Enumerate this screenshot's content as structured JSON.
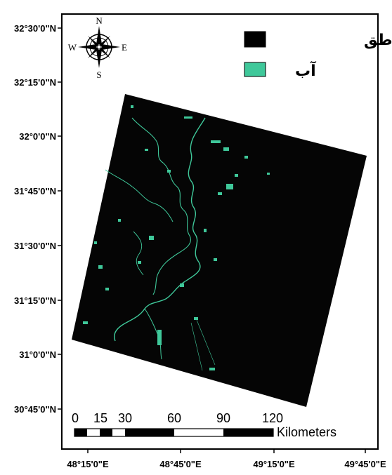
{
  "latitude_labels": [
    "32°30'0\"N",
    "32°15'0\"N",
    "32°0'0\"N",
    "31°45'0\"N",
    "31°30'0\"N",
    "31°15'0\"N",
    "31°0'0\"N",
    "30°45'0\"N"
  ],
  "longitude_labels": [
    "48°15'0\"E",
    "48°45'0\"E",
    "49°15'0\"E",
    "49°45'0\"E"
  ],
  "legend": {
    "items": [
      {
        "label": "سایر مناطق",
        "color": "#000000"
      },
      {
        "label": "آب",
        "color": "#3fc89a"
      }
    ]
  },
  "compass": {
    "north": "N",
    "south": "S",
    "east": "E",
    "west": "W"
  },
  "scale_bar": {
    "ticks": [
      "0",
      "15",
      "30",
      "60",
      "90",
      "120"
    ],
    "unit": "Kilometers"
  },
  "colors": {
    "water": "#3fc89a",
    "land": "#050505",
    "frame": "#000000"
  }
}
